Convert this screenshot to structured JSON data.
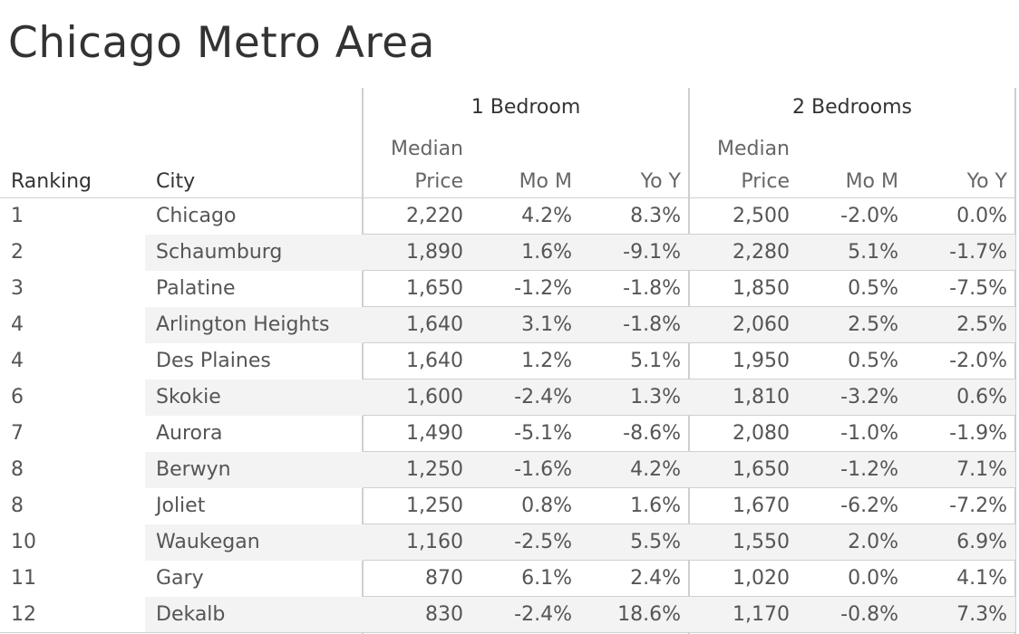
{
  "title": "Chicago Metro Area",
  "header": {
    "ranking": "Ranking",
    "city": "City",
    "group1": "1 Bedroom",
    "group2": "2 Bedrooms",
    "median_top": "Median",
    "median_bottom": "Price",
    "mom": "Mo M",
    "yoy": "Yo Y"
  },
  "chart_data": {
    "type": "table",
    "title": "Chicago Metro Area",
    "columns": [
      "Ranking",
      "City",
      "1 Bedroom Median Price",
      "1 Bedroom Mo M",
      "1 Bedroom Yo Y",
      "2 Bedrooms Median Price",
      "2 Bedrooms Mo M",
      "2 Bedrooms Yo Y"
    ],
    "rows": [
      [
        "1",
        "Chicago",
        "2,220",
        "4.2%",
        "8.3%",
        "2,500",
        "-2.0%",
        "0.0%"
      ],
      [
        "2",
        "Schaumburg",
        "1,890",
        "1.6%",
        "-9.1%",
        "2,280",
        "5.1%",
        "-1.7%"
      ],
      [
        "3",
        "Palatine",
        "1,650",
        "-1.2%",
        "-1.8%",
        "1,850",
        "0.5%",
        "-7.5%"
      ],
      [
        "4",
        "Arlington Heights",
        "1,640",
        "3.1%",
        "-1.8%",
        "2,060",
        "2.5%",
        "2.5%"
      ],
      [
        "4",
        "Des Plaines",
        "1,640",
        "1.2%",
        "5.1%",
        "1,950",
        "0.5%",
        "-2.0%"
      ],
      [
        "6",
        "Skokie",
        "1,600",
        "-2.4%",
        "1.3%",
        "1,810",
        "-3.2%",
        "0.6%"
      ],
      [
        "7",
        "Aurora",
        "1,490",
        "-5.1%",
        "-8.6%",
        "2,080",
        "-1.0%",
        "-1.9%"
      ],
      [
        "8",
        "Berwyn",
        "1,250",
        "-1.6%",
        "4.2%",
        "1,650",
        "-1.2%",
        "7.1%"
      ],
      [
        "8",
        "Joliet",
        "1,250",
        "0.8%",
        "1.6%",
        "1,670",
        "-6.2%",
        "-7.2%"
      ],
      [
        "10",
        "Waukegan",
        "1,160",
        "-2.5%",
        "5.5%",
        "1,550",
        "2.0%",
        "6.9%"
      ],
      [
        "11",
        "Gary",
        "870",
        "6.1%",
        "2.4%",
        "1,020",
        "0.0%",
        "4.1%"
      ],
      [
        "12",
        "Dekalb",
        "830",
        "-2.4%",
        "18.6%",
        "1,170",
        "-0.8%",
        "7.3%"
      ]
    ]
  }
}
